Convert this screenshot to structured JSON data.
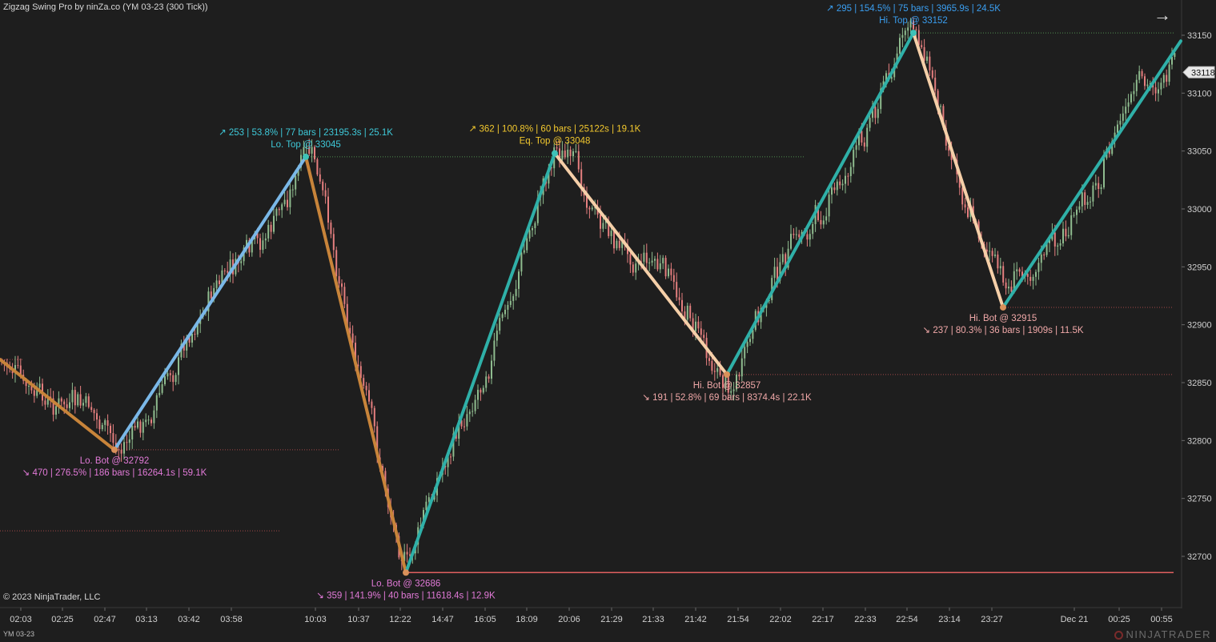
{
  "title": "Zigzag Swing Pro by ninZa.co (YM 03-23 (300 Tick))",
  "copyright": "© 2023 NinjaTrader, LLC",
  "instrument": "YM 03-23",
  "brand": "NINJATRADER",
  "nav_icon": "arrow-right-icon",
  "colors": {
    "background": "#1e1e1e",
    "bull_candle": "#8fbc8f",
    "bear_candle": "#e57f7f",
    "axis_text": "#cfcfcf",
    "current_price_bg": "#e8e8e8"
  },
  "chart_data": {
    "type": "candlestick-zigzag",
    "y_range": [
      32665,
      33175
    ],
    "y_ticks": [
      32700,
      32750,
      32800,
      32850,
      32900,
      32950,
      33000,
      33050,
      33100,
      33150
    ],
    "x_tick_labels": [
      "02:03",
      "02:25",
      "02:47",
      "03:13",
      "03:42",
      "03:58",
      "10:03",
      "10:37",
      "12:22",
      "14:47",
      "16:05",
      "18:09",
      "20:06",
      "21:29",
      "21:33",
      "21:42",
      "21:54",
      "22:02",
      "22:17",
      "22:33",
      "22:54",
      "23:14",
      "23:27",
      "Dec 21",
      "00:25",
      "00:55"
    ],
    "current_price": "33118",
    "current_price_value": 33118,
    "zigzag": [
      {
        "time": "start",
        "price": 32870,
        "color": "#c8843a"
      },
      {
        "time": "02:47",
        "price": 32792,
        "color": "#7ab8e8"
      },
      {
        "time": "10:03",
        "price": 33045,
        "color": "#c8843a"
      },
      {
        "time": "12:22",
        "price": 32686,
        "color": "#2fb0a8"
      },
      {
        "time": "20:06",
        "price": 33048,
        "color": "#f5cfa8"
      },
      {
        "time": "21:54",
        "price": 32857,
        "color": "#2fb0a8"
      },
      {
        "time": "22:54",
        "price": 33152,
        "color": "#f5cfa8"
      },
      {
        "time": "23:27",
        "price": 32915,
        "color": "#2fb0a8"
      },
      {
        "time": "end",
        "price": 33145,
        "color": "#2fb0a8"
      }
    ],
    "swing_labels": [
      {
        "label": "Lo. Bot @ 32792",
        "stats": "↘ 470  |  276.5%  |  186 bars  |  16264.1s  |  59.1K",
        "price": 32792,
        "position": "below",
        "color": "#e27ad8"
      },
      {
        "label": "Lo. Top @ 33045",
        "stats": "↗ 253  |  53.8%  |  77 bars  |  23195.3s  |  25.1K",
        "price": 33045,
        "position": "above",
        "color": "#3ec8d8"
      },
      {
        "label": "Lo. Bot @ 32686",
        "stats": "↘ 359  |  141.9%  |  40 bars  |  11618.4s  |  12.9K",
        "price": 32686,
        "position": "below",
        "color": "#e27ad8"
      },
      {
        "label": "Eq. Top @ 33048",
        "stats": "↗ 362  |  100.8%  |  60 bars  |  25122s  |  19.1K",
        "price": 33048,
        "position": "above",
        "color": "#f2c82e"
      },
      {
        "label": "Hi. Bot @ 32857",
        "stats": "↘ 191  |  52.8%  |  69 bars  |  8374.4s  |  22.1K",
        "price": 32857,
        "position": "below",
        "color": "#f0a8a8"
      },
      {
        "label": "Hi. Top @ 33152",
        "stats": "↗ 295  |  154.5%  |  75 bars  |  3965.9s  |  24.5K",
        "price": 33152,
        "position": "above",
        "color": "#3a9ef0"
      },
      {
        "label": "Hi. Bot @ 32915",
        "stats": "↘ 237  |  80.3%  |  36 bars  |  1909s  |  11.5K",
        "price": 32915,
        "position": "below",
        "color": "#f0a8a8"
      }
    ],
    "level_lines": [
      {
        "price": 32870,
        "type": "support",
        "from": "start"
      },
      {
        "price": 32792,
        "type": "support",
        "from": "02:47"
      },
      {
        "price": 32722,
        "type": "support",
        "from": "start"
      },
      {
        "price": 33045,
        "type": "resistance",
        "from": "10:03"
      },
      {
        "price": 32686,
        "type": "support-solid",
        "from": "12:22"
      },
      {
        "price": 32857,
        "type": "support",
        "from": "21:54"
      },
      {
        "price": 33152,
        "type": "resistance",
        "from": "22:54"
      },
      {
        "price": 32915,
        "type": "support",
        "from": "23:27"
      }
    ]
  }
}
